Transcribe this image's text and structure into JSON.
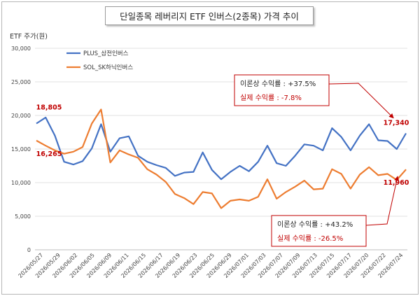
{
  "title": "단일종목 레버리지 ETF 인버스(2종목) 가격 추이",
  "chart_data": {
    "type": "line",
    "ylabel": "ETF 주가(원)",
    "ylim": [
      0,
      30000
    ],
    "yticks": [
      0,
      5000,
      10000,
      15000,
      20000,
      25000,
      30000
    ],
    "ytick_labels": [
      "0",
      "5,000",
      "10,000",
      "15,000",
      "20,000",
      "25,000",
      "30,000"
    ],
    "x_tick_labels": [
      "2026/05/27",
      "2026/05/29",
      "2026/06/02",
      "2026/06/05",
      "2026/06/09",
      "2026/06/11",
      "2026/06/15",
      "2026/06/17",
      "2026/06/19",
      "2026/06/23",
      "2026/06/25",
      "2026/06/29",
      "2026/07/01",
      "2026/07/03",
      "2026/07/07",
      "2026/07/09",
      "2026/07/13",
      "2026/07/15",
      "2026/07/17",
      "2026/07/20",
      "2026/07/22",
      "2026/07/24"
    ],
    "grid": true,
    "legend_position": "top-left",
    "series": [
      {
        "name": "PLUS_삼전인버스",
        "color": "#4472c4",
        "values": [
          18805,
          19700,
          17000,
          13100,
          12700,
          13200,
          15100,
          18700,
          14600,
          16600,
          16900,
          14000,
          13100,
          12600,
          12200,
          11000,
          11500,
          11600,
          14500,
          11900,
          10500,
          11600,
          12500,
          11700,
          13100,
          15500,
          12900,
          12500,
          14000,
          15700,
          15500,
          14800,
          18100,
          16800,
          14800,
          17000,
          18700,
          16300,
          16200,
          15000,
          17340
        ]
      },
      {
        "name": "SOL_SK하닉인버스",
        "color": "#ed7d31",
        "values": [
          16265,
          15500,
          14800,
          14300,
          14600,
          15300,
          18800,
          20900,
          13000,
          14800,
          14200,
          13700,
          12000,
          11200,
          10100,
          8300,
          7700,
          6800,
          8600,
          8400,
          6200,
          7300,
          7500,
          7300,
          7900,
          10500,
          7600,
          8600,
          9400,
          10300,
          9000,
          9100,
          12000,
          11300,
          9100,
          11200,
          12300,
          11100,
          11300,
          10400,
          11960
        ]
      }
    ],
    "point_labels": [
      {
        "text": "18,805",
        "series": 0,
        "index": 0
      },
      {
        "text": "16,265",
        "series": 1,
        "index": 0
      },
      {
        "text": "17,340",
        "series": 0,
        "index": 40
      },
      {
        "text": "11,960",
        "series": 1,
        "index": 40
      }
    ],
    "annotations": [
      {
        "line1": "이론상 수익률 : +37.5%",
        "line2": "실제 수익률 : -7.8%",
        "series": 0
      },
      {
        "line1": "이론상 수익률 : +43.2%",
        "line2": "실제 수익률 : -26.5%",
        "series": 1
      }
    ]
  }
}
